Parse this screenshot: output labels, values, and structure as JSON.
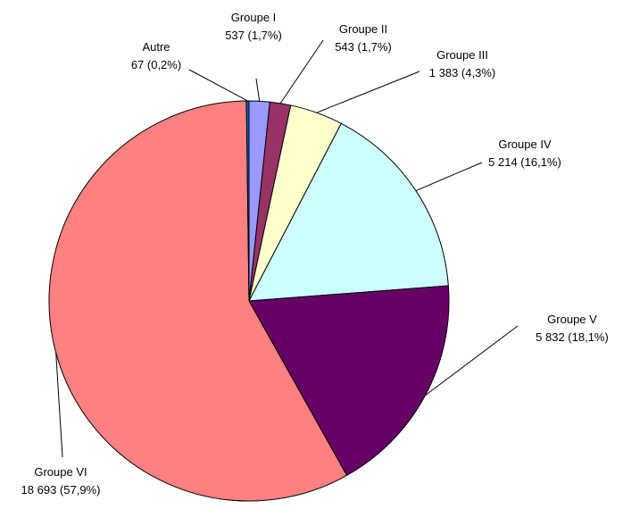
{
  "chart_data": {
    "type": "pie",
    "categories": [
      "Groupe I",
      "Groupe II",
      "Groupe III",
      "Groupe IV",
      "Groupe V",
      "Groupe VI",
      "Autre"
    ],
    "values": [
      537,
      543,
      1383,
      5214,
      5832,
      18693,
      67
    ],
    "value_labels": [
      "537 (1,7%)",
      "543 (1,7%)",
      "1 383 (4,3%)",
      "5 214 (16,1%)",
      "5 832 (18,1%)",
      "18 693 (57,9%)",
      "67 (0,2%)"
    ],
    "colors": [
      "#9999ff",
      "#993366",
      "#ffffcc",
      "#ccffff",
      "#660066",
      "#ff8080",
      "#0066cc"
    ]
  }
}
